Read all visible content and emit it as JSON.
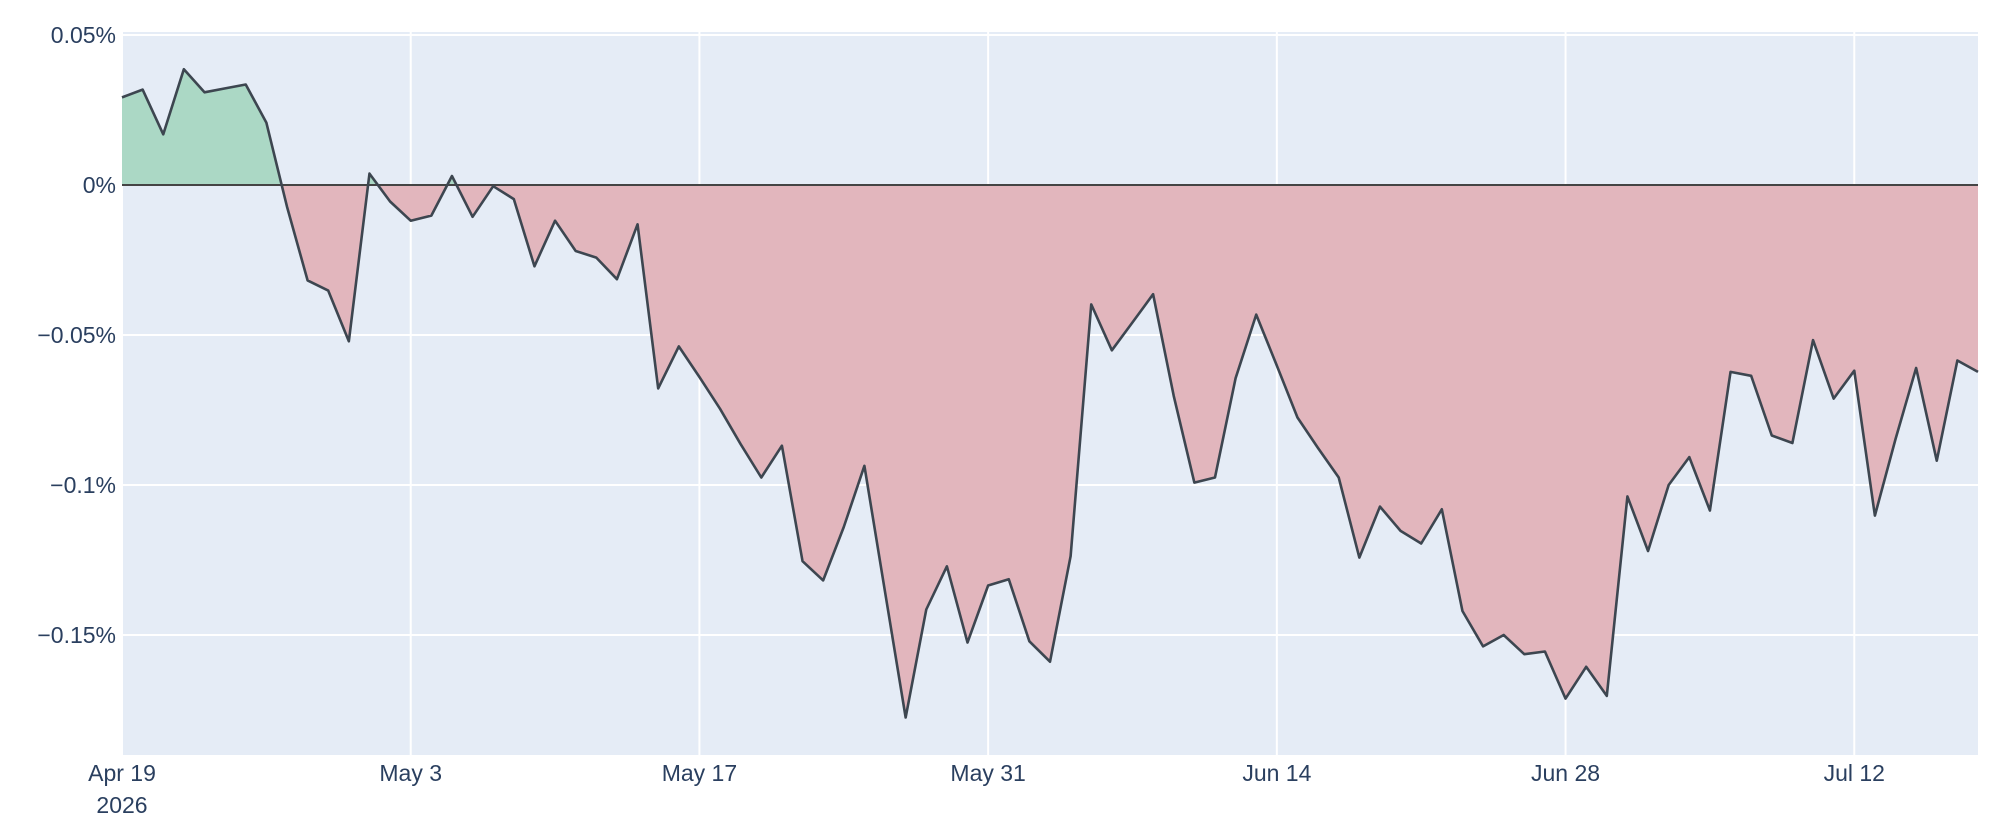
{
  "chart_data": {
    "type": "area",
    "x": [
      "2026-04-19",
      "2026-04-20",
      "2026-04-21",
      "2026-04-22",
      "2026-04-23",
      "2026-04-24",
      "2026-04-25",
      "2026-04-26",
      "2026-04-27",
      "2026-04-28",
      "2026-04-29",
      "2026-04-30",
      "2026-05-01",
      "2026-05-02",
      "2026-05-03",
      "2026-05-04",
      "2026-05-05",
      "2026-05-06",
      "2026-05-07",
      "2026-05-08",
      "2026-05-09",
      "2026-05-10",
      "2026-05-11",
      "2026-05-12",
      "2026-05-13",
      "2026-05-14",
      "2026-05-15",
      "2026-05-16",
      "2026-05-17",
      "2026-05-18",
      "2026-05-19",
      "2026-05-20",
      "2026-05-21",
      "2026-05-22",
      "2026-05-23",
      "2026-05-24",
      "2026-05-25",
      "2026-05-26",
      "2026-05-27",
      "2026-05-28",
      "2026-05-29",
      "2026-05-30",
      "2026-05-31",
      "2026-06-01",
      "2026-06-02",
      "2026-06-03",
      "2026-06-04",
      "2026-06-05",
      "2026-06-06",
      "2026-06-07",
      "2026-06-08",
      "2026-06-09",
      "2026-06-10",
      "2026-06-11",
      "2026-06-12",
      "2026-06-13",
      "2026-06-14",
      "2026-06-15",
      "2026-06-16",
      "2026-06-17",
      "2026-06-18",
      "2026-06-19",
      "2026-06-20",
      "2026-06-21",
      "2026-06-22",
      "2026-06-23",
      "2026-06-24",
      "2026-06-25",
      "2026-06-26",
      "2026-06-27",
      "2026-06-28",
      "2026-06-29",
      "2026-06-30",
      "2026-07-01",
      "2026-07-02",
      "2026-07-03",
      "2026-07-04",
      "2026-07-05",
      "2026-07-06",
      "2026-07-07",
      "2026-07-08",
      "2026-07-09",
      "2026-07-10",
      "2026-07-11",
      "2026-07-12",
      "2026-07-13",
      "2026-07-14",
      "2026-07-15",
      "2026-07-16",
      "2026-07-17",
      "2026-07-18"
    ],
    "values": [
      0.0292,
      0.0318,
      0.0169,
      0.0386,
      0.0309,
      0.0322,
      0.0335,
      0.0208,
      -0.0072,
      -0.0318,
      -0.0352,
      -0.0521,
      0.0038,
      -0.0055,
      -0.0119,
      -0.0102,
      0.003,
      -0.0106,
      -0.0004,
      -0.0047,
      -0.0271,
      -0.0119,
      -0.022,
      -0.0242,
      -0.0314,
      -0.0131,
      -0.0678,
      -0.0538,
      -0.064,
      -0.0746,
      -0.0864,
      -0.0975,
      -0.0869,
      -0.1254,
      -0.1318,
      -0.114,
      -0.0936,
      -0.1356,
      -0.1775,
      -0.1415,
      -0.1271,
      -0.1525,
      -0.1335,
      -0.1314,
      -0.1521,
      -0.1589,
      -0.1237,
      -0.0398,
      -0.0551,
      -0.0458,
      -0.0364,
      -0.0703,
      -0.0992,
      -0.0975,
      -0.0644,
      -0.0432,
      -0.0602,
      -0.0775,
      -0.0877,
      -0.0975,
      -0.1242,
      -0.1072,
      -0.1153,
      -0.1195,
      -0.1081,
      -0.142,
      -0.1538,
      -0.15,
      -0.1564,
      -0.1555,
      -0.1712,
      -0.1606,
      -0.1703,
      -0.1038,
      -0.122,
      -0.1,
      -0.0907,
      -0.1085,
      -0.0623,
      -0.0636,
      -0.0835,
      -0.086,
      -0.0517,
      -0.0712,
      -0.0619,
      -0.1102,
      -0.0847,
      -0.061,
      -0.0919,
      -0.0585,
      -0.0623
    ],
    "line_color": "#3d4650",
    "positive_color": "#abd8c5",
    "negative_color": "#e2b6bd",
    "xlim": [
      "2026-04-19",
      "2026-07-18"
    ],
    "ylim": [
      -0.19,
      0.051
    ],
    "xticks": [
      {
        "value": "2026-04-19",
        "label": "Apr 19",
        "year": "2026"
      },
      {
        "value": "2026-05-03",
        "label": "May 3"
      },
      {
        "value": "2026-05-17",
        "label": "May 17"
      },
      {
        "value": "2026-05-31",
        "label": "May 31"
      },
      {
        "value": "2026-06-14",
        "label": "Jun 14"
      },
      {
        "value": "2026-06-28",
        "label": "Jun 28"
      },
      {
        "value": "2026-07-12",
        "label": "Jul 12"
      }
    ],
    "yticks": [
      {
        "value": 0.05,
        "label": "0.05%"
      },
      {
        "value": 0,
        "label": "0%"
      },
      {
        "value": -0.05,
        "label": "−0.05%"
      },
      {
        "value": -0.1,
        "label": "−0.1%"
      },
      {
        "value": -0.15,
        "label": "−0.15%"
      }
    ],
    "grid": true,
    "zeroline": true
  }
}
